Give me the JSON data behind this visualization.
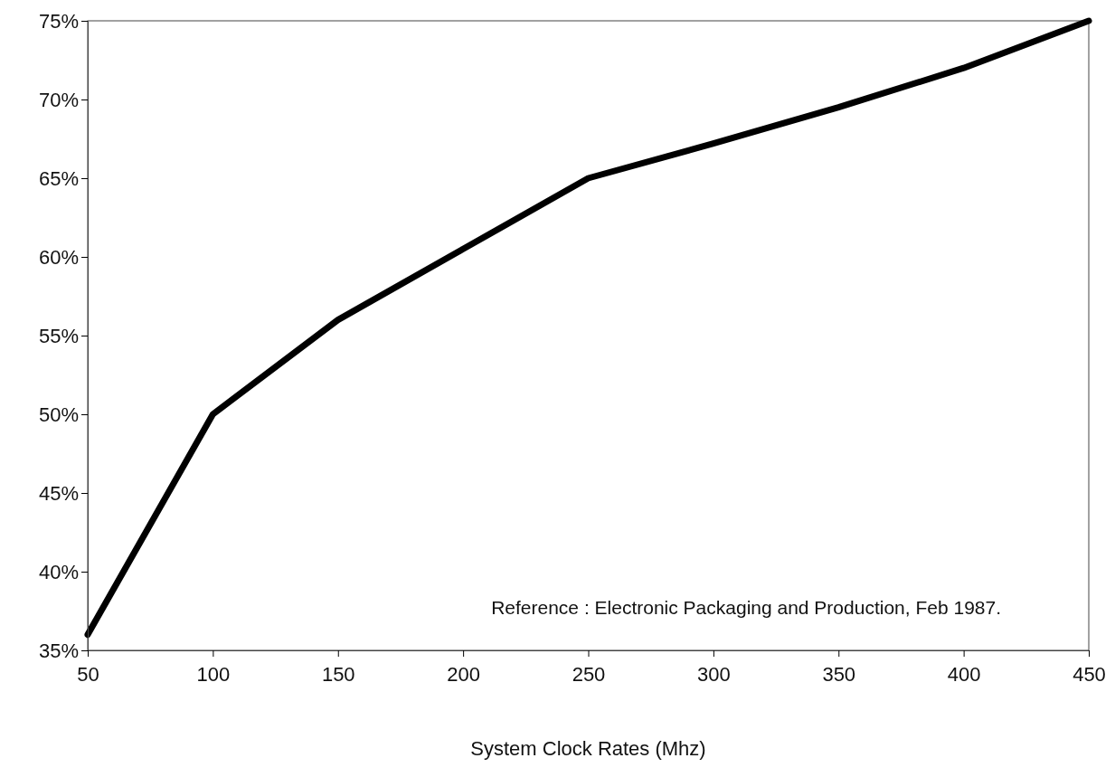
{
  "chart_data": {
    "type": "line",
    "xlabel": "System Clock Rates (Mhz)",
    "x": [
      50,
      100,
      150,
      200,
      250,
      300,
      350,
      400,
      450
    ],
    "series": [
      {
        "color": "#000000",
        "values": [
          36,
          50,
          56,
          60.5,
          65,
          67.2,
          69.5,
          72,
          75
        ]
      }
    ],
    "xlim": [
      50,
      450
    ],
    "xticks": [
      50,
      100,
      150,
      200,
      250,
      300,
      350,
      400,
      450
    ],
    "ylim": [
      35,
      75
    ],
    "yticks": [
      {
        "value": 35,
        "label": "35%"
      },
      {
        "value": 40,
        "label": "40%"
      },
      {
        "value": 45,
        "label": "45%"
      },
      {
        "value": 50,
        "label": "50%"
      },
      {
        "value": 55,
        "label": "55%"
      },
      {
        "value": 60,
        "label": "60%"
      },
      {
        "value": 65,
        "label": "65%"
      },
      {
        "value": 70,
        "label": "70%"
      },
      {
        "value": 75,
        "label": "75%"
      }
    ],
    "annotations": [
      "Reference : Electronic Packaging and Production, Feb 1987."
    ],
    "line_style": "solid",
    "marker": "none",
    "grid": false
  }
}
